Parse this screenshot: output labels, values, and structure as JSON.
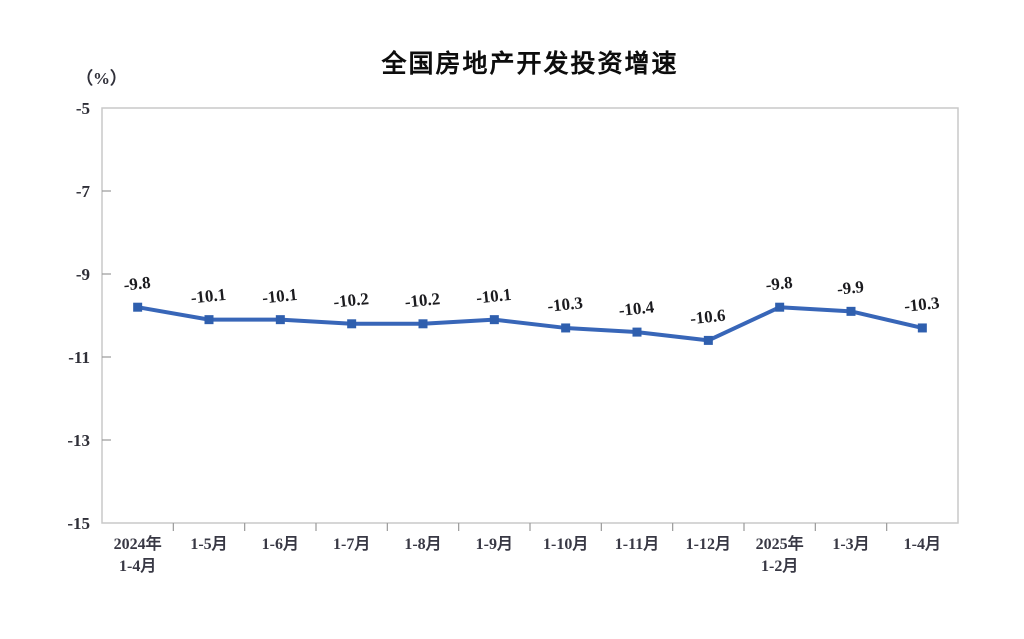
{
  "chart": {
    "title": "全国房地产开发投资增速",
    "unit_label": "（%）"
  },
  "chart_data": {
    "type": "line",
    "title": "全国房地产开发投资增速",
    "ylabel": "（%）",
    "xlabel": "",
    "categories": [
      "2024年\n1-4月",
      "1-5月",
      "1-6月",
      "1-7月",
      "1-8月",
      "1-9月",
      "1-10月",
      "1-11月",
      "1-12月",
      "2025年\n1-2月",
      "1-3月",
      "1-4月"
    ],
    "values": [
      -9.8,
      -10.1,
      -10.1,
      -10.2,
      -10.2,
      -10.1,
      -10.3,
      -10.4,
      -10.6,
      -9.8,
      -9.9,
      -10.3
    ],
    "data_labels": [
      "-9.8",
      "-10.1",
      "-10.1",
      "-10.2",
      "-10.2",
      "-10.1",
      "-10.3",
      "-10.4",
      "-10.6",
      "-9.8",
      "-9.9",
      "-10.3"
    ],
    "ylim": [
      -15,
      -5
    ],
    "ytick_step": 2,
    "ytick_labels": [
      "-5",
      "-7",
      "-9",
      "-11",
      "-13",
      "-15"
    ],
    "grid": false,
    "legend": "none",
    "marker": "square",
    "line_color": "#3866b8",
    "marker_color": "#2f5fae",
    "plot_border_color": "#c9c9c9",
    "tick_color": "#9a9a9a"
  }
}
